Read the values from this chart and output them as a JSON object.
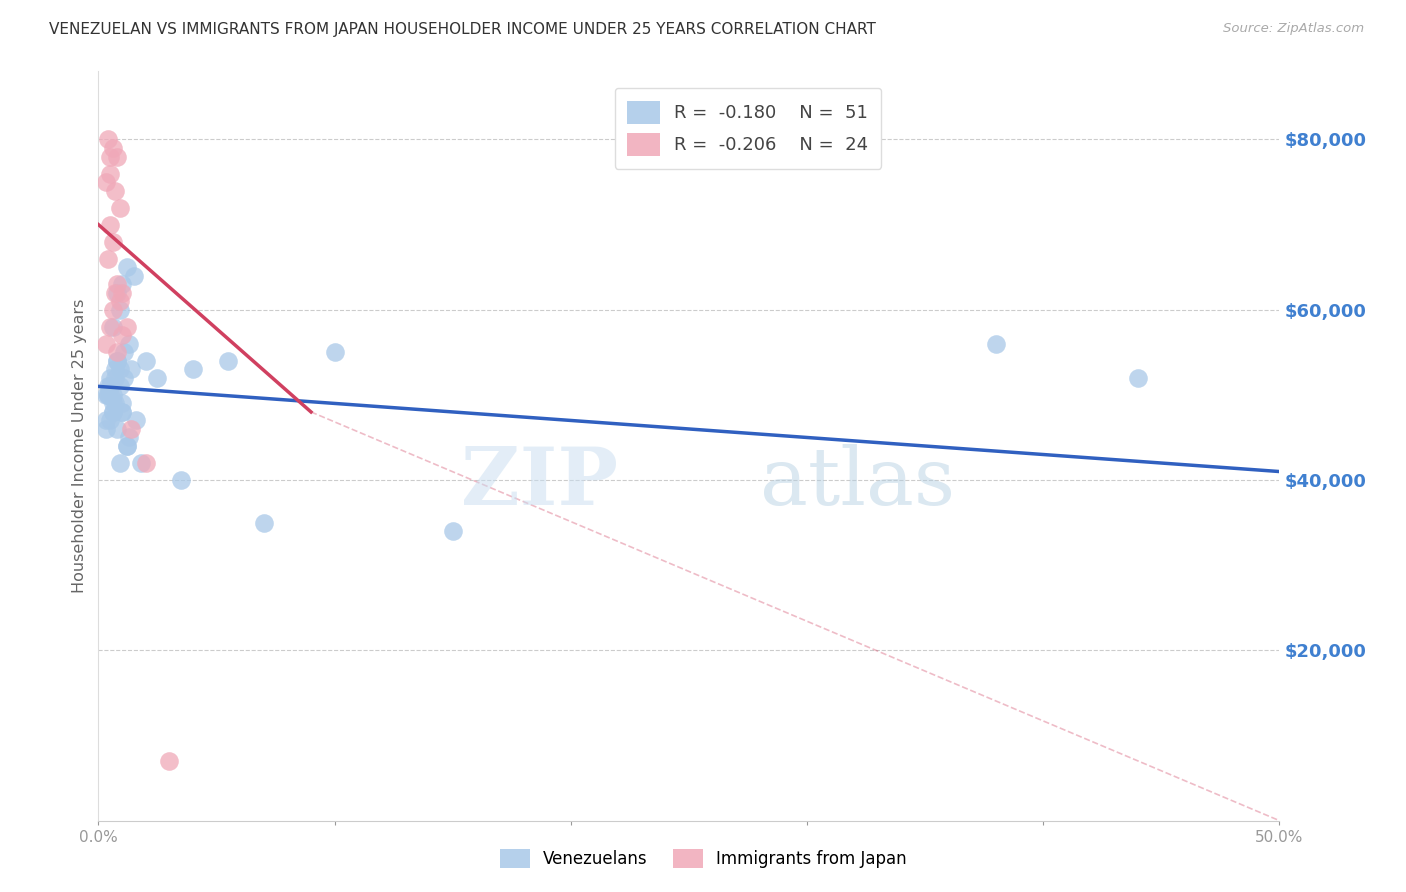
{
  "title": "VENEZUELAN VS IMMIGRANTS FROM JAPAN HOUSEHOLDER INCOME UNDER 25 YEARS CORRELATION CHART",
  "source": "Source: ZipAtlas.com",
  "ylabel": "Householder Income Under 25 years",
  "right_ytick_labels": [
    "$80,000",
    "$60,000",
    "$40,000",
    "$20,000"
  ],
  "right_ytick_values": [
    80000,
    60000,
    40000,
    20000
  ],
  "legend_blue_r": "-0.180",
  "legend_blue_n": "51",
  "legend_pink_r": "-0.206",
  "legend_pink_n": "24",
  "blue_color": "#a8c8e8",
  "pink_color": "#f0a8b8",
  "blue_line_color": "#3060c0",
  "pink_line_color": "#d04060",
  "watermark_zip": "ZIP",
  "watermark_atlas": "atlas",
  "xlim": [
    0,
    50
  ],
  "ylim": [
    0,
    88000
  ],
  "blue_scatter_x": [
    0.5,
    0.8,
    1.0,
    0.3,
    0.6,
    0.4,
    0.7,
    0.9,
    1.1,
    0.5,
    0.8,
    1.2,
    0.6,
    0.9,
    1.3,
    0.4,
    0.7,
    1.0,
    1.5,
    0.3,
    0.5,
    0.8,
    1.1,
    0.6,
    0.9,
    1.4,
    0.3,
    0.6,
    0.8,
    1.0,
    1.2,
    1.6,
    0.5,
    0.7,
    1.0,
    1.3,
    0.4,
    0.6,
    0.9,
    1.2,
    2.0,
    2.5,
    3.5,
    4.0,
    5.5,
    7.0,
    10.0,
    15.0,
    38.0,
    44.0,
    1.8
  ],
  "blue_scatter_y": [
    52000,
    54000,
    63000,
    50000,
    48000,
    51000,
    49000,
    53000,
    55000,
    47000,
    62000,
    65000,
    58000,
    60000,
    56000,
    50000,
    52000,
    48000,
    64000,
    46000,
    50000,
    54000,
    52000,
    49000,
    51000,
    53000,
    47000,
    50000,
    46000,
    49000,
    44000,
    47000,
    51000,
    53000,
    48000,
    45000,
    50000,
    48000,
    42000,
    44000,
    54000,
    52000,
    40000,
    53000,
    54000,
    35000,
    55000,
    34000,
    56000,
    52000,
    42000
  ],
  "pink_scatter_x": [
    0.4,
    0.6,
    0.8,
    0.5,
    0.3,
    0.7,
    0.9,
    0.5,
    0.6,
    0.4,
    0.8,
    1.0,
    0.6,
    0.9,
    1.2,
    0.5,
    0.3,
    0.7,
    1.0,
    0.8,
    1.4,
    2.0,
    0.5,
    3.0
  ],
  "pink_scatter_y": [
    80000,
    79000,
    78000,
    76000,
    75000,
    74000,
    72000,
    70000,
    68000,
    66000,
    63000,
    62000,
    60000,
    61000,
    58000,
    58000,
    56000,
    62000,
    57000,
    55000,
    46000,
    42000,
    78000,
    7000
  ],
  "blue_trend_x0": 0,
  "blue_trend_x1": 50,
  "blue_trend_y0": 51000,
  "blue_trend_y1": 41000,
  "pink_trend_x0": 0,
  "pink_trend_x1": 9,
  "pink_trend_y0": 70000,
  "pink_trend_y1": 48000,
  "pink_dash_x0": 9,
  "pink_dash_x1": 50,
  "pink_dash_y0": 48000,
  "pink_dash_y1": 0,
  "xticks": [
    0,
    10,
    20,
    30,
    40,
    50
  ],
  "xtick_labels": [
    "0.0%",
    "",
    "",
    "",
    "",
    "50.0%"
  ]
}
